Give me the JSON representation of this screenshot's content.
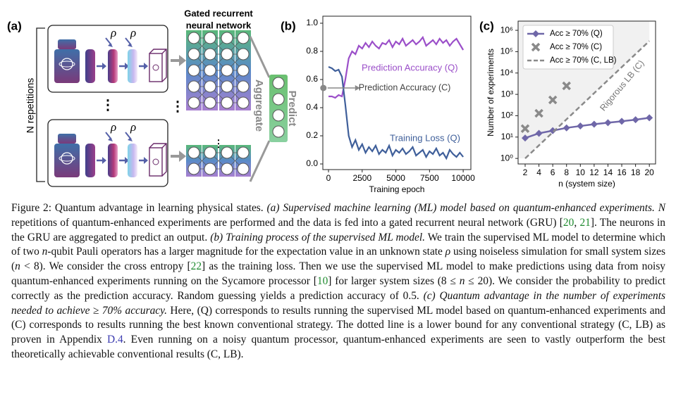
{
  "figure": {
    "panels": [
      "(a)",
      "(b)",
      "(c)"
    ],
    "diagram": {
      "repetitions": "N repetitions",
      "gru_title_1": "Gated recurrent",
      "gru_title_2": "neural network",
      "aggregate": "Aggregate",
      "predict": "Predict",
      "rho": "ρ",
      "vdots": "⋮"
    }
  },
  "chart_data": [
    {
      "type": "line",
      "xlabel": "Training epoch",
      "x": [
        0,
        250,
        500,
        750,
        1000,
        1250,
        1500,
        1750,
        2000,
        2250,
        2500,
        2750,
        3000,
        3250,
        3500,
        3750,
        4000,
        4250,
        4500,
        4750,
        5000,
        5250,
        5500,
        5750,
        6000,
        6250,
        6500,
        6750,
        7000,
        7250,
        7500,
        7750,
        8000,
        8250,
        8500,
        8750,
        9000,
        9250,
        9500,
        9750,
        10000
      ],
      "series": [
        {
          "name": "Prediction Accuracy (Q)",
          "color": "#9b4fc9",
          "values": [
            0.48,
            0.48,
            0.47,
            0.49,
            0.48,
            0.6,
            0.75,
            0.8,
            0.78,
            0.84,
            0.82,
            0.86,
            0.83,
            0.87,
            0.84,
            0.82,
            0.86,
            0.85,
            0.88,
            0.83,
            0.87,
            0.85,
            0.89,
            0.84,
            0.86,
            0.88,
            0.85,
            0.87,
            0.9,
            0.84,
            0.86,
            0.88,
            0.85,
            0.89,
            0.86,
            0.88,
            0.84,
            0.87,
            0.89,
            0.85,
            0.81
          ]
        },
        {
          "name": "Training Loss (Q)",
          "color": "#3f5f9a",
          "values": [
            0.69,
            0.68,
            0.66,
            0.67,
            0.62,
            0.42,
            0.2,
            0.12,
            0.17,
            0.1,
            0.14,
            0.08,
            0.12,
            0.09,
            0.13,
            0.07,
            0.1,
            0.08,
            0.13,
            0.06,
            0.1,
            0.08,
            0.11,
            0.07,
            0.09,
            0.12,
            0.06,
            0.08,
            0.1,
            0.05,
            0.09,
            0.07,
            0.11,
            0.06,
            0.08,
            0.04,
            0.1,
            0.07,
            0.05,
            0.08,
            0.05
          ]
        }
      ],
      "points": [
        {
          "label": "Prediction Accuracy (C)",
          "x": -380,
          "y": 0.54,
          "color": "#888888"
        }
      ],
      "xlim": [
        -420,
        10570
      ],
      "ylim": [
        -0.04,
        1.05
      ],
      "xticks": [
        0,
        2500,
        5000,
        7500,
        10000
      ],
      "yticks": [
        {
          "value": 0,
          "label": "0.0"
        },
        {
          "value": 0.2,
          "label": "0.2"
        },
        {
          "value": 0.4,
          "label": "0.4"
        },
        {
          "value": 0.6,
          "label": "0.6"
        },
        {
          "value": 0.8,
          "label": "0.8"
        },
        {
          "value": 1,
          "label": "1.0"
        }
      ],
      "legend": false
    },
    {
      "type": "line",
      "xlabel": "n (system size)",
      "ylabel": "Number of experiments",
      "log_y": true,
      "x": [
        2,
        4,
        6,
        8,
        10,
        12,
        14,
        16,
        18,
        20
      ],
      "series": [
        {
          "name": "Acc ≥ 70% (Q)",
          "color": "#6f67a8",
          "style": "solid",
          "marker": "diamond",
          "values": [
            9,
            15,
            20,
            27,
            33,
            40,
            47,
            55,
            65,
            80
          ]
        },
        {
          "name": "Acc ≥ 70% (C)",
          "color": "#8a8a8a",
          "style": "none",
          "marker": "x",
          "values": [
            25,
            130,
            550,
            2500,
            null,
            null,
            null,
            null,
            null,
            null
          ]
        },
        {
          "name": "Acc ≥ 70% (C, LB)",
          "color": "#8a8a8a",
          "style": "dashed",
          "marker": "none",
          "shade": "#f1f1f1",
          "values": [
            1,
            4.1,
            16.7,
            68,
            278,
            1140,
            4640,
            18960,
            77400,
            316000
          ]
        }
      ],
      "annotation": "Rigorous LB (C)",
      "xlim": [
        0.98,
        20.9
      ],
      "ylim": [
        0.55,
        2700000
      ],
      "xticks": [
        2,
        4,
        6,
        8,
        10,
        12,
        14,
        16,
        18,
        20
      ],
      "yticks": [
        {
          "value": 1,
          "label": "10⁰"
        },
        {
          "value": 10,
          "label": "10¹"
        },
        {
          "value": 100,
          "label": "10²"
        },
        {
          "value": 1000,
          "label": "10³"
        },
        {
          "value": 10000,
          "label": "10⁴"
        },
        {
          "value": 100000,
          "label": "10⁵"
        },
        {
          "value": 1000000,
          "label": "10⁶"
        }
      ],
      "legend": "upper left"
    }
  ],
  "caption": [
    {
      "text": "Figure 2:  Quantum advantage in learning physical states. "
    },
    {
      "text": "(a) Supervised machine learning (ML) model based on quantum-enhanced experiments.",
      "style": "i"
    },
    {
      "text": " "
    },
    {
      "text": "N",
      "style": "i"
    },
    {
      "text": " repetitions of quantum-enhanced experiments are performed and the data is fed into a gated recurrent neural network (GRU) ["
    },
    {
      "text": "20",
      "style": "ref"
    },
    {
      "text": ", "
    },
    {
      "text": "21",
      "style": "ref"
    },
    {
      "text": "]. The neurons in the GRU are aggregated to predict an output. "
    },
    {
      "text": "(b) Training process of the supervised ML model.",
      "style": "i"
    },
    {
      "text": " We train the supervised ML model to determine which of two "
    },
    {
      "text": "n",
      "style": "i"
    },
    {
      "text": "-qubit Pauli operators has a larger magnitude for the expectation value in an unknown state "
    },
    {
      "text": "ρ",
      "style": "i"
    },
    {
      "text": " using noiseless simulation for small system sizes ("
    },
    {
      "text": "n",
      "style": "i"
    },
    {
      "text": " < 8). We consider the cross entropy ["
    },
    {
      "text": "22",
      "style": "ref"
    },
    {
      "text": "] as the training loss. Then we use the supervised ML model to make predictions using data from noisy quantum-enhanced experiments running on the Sycamore processor ["
    },
    {
      "text": "10",
      "style": "ref"
    },
    {
      "text": "] for larger system sizes (8 ≤ "
    },
    {
      "text": "n",
      "style": "i"
    },
    {
      "text": " ≤ 20). We consider the probability to predict correctly as the prediction accuracy. Random guessing yields a prediction accuracy of 0.5. "
    },
    {
      "text": "(c) Quantum advantage in the number of experiments needed to achieve ≥ 70% accuracy.",
      "style": "i"
    },
    {
      "text": " Here, (Q) corresponds to results running the supervised ML model based on quantum-enhanced experiments and (C) corresponds to results running the best known conventional strategy. The dotted line is a lower bound for any conventional strategy (C, LB) as proven in Appendix "
    },
    {
      "text": "D.4",
      "style": "link"
    },
    {
      "text": ". Even running on a noisy quantum processor, quantum-enhanced experiments are seen to vastly outperform the best theoretically achievable conventional results (C, LB)."
    }
  ]
}
